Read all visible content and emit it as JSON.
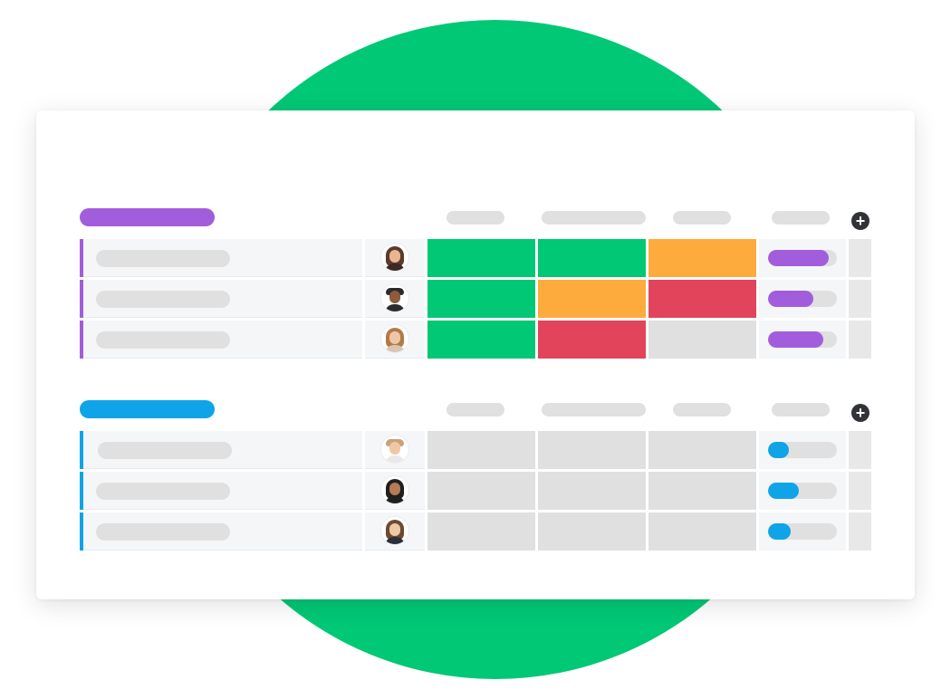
{
  "colors": {
    "background_circle": "#00c875",
    "group1_accent": "#a25ddc",
    "group2_accent": "#0fa4e8",
    "status_done": "#00c875",
    "status_working": "#fdab3d",
    "status_stuck": "#e2445c",
    "status_empty": "#e0e0e0"
  },
  "icons": {
    "add_column": "plus-circle-icon"
  },
  "groups": [
    {
      "accent": "#a25ddc",
      "rows": [
        {
          "avatar": "person-avatar",
          "statuses": [
            "#00c875",
            "#00c875",
            "#fdab3d"
          ],
          "progress": 0.88
        },
        {
          "avatar": "person-avatar",
          "statuses": [
            "#00c875",
            "#fdab3d",
            "#e2445c"
          ],
          "progress": 0.66
        },
        {
          "avatar": "person-avatar",
          "statuses": [
            "#00c875",
            "#e2445c",
            "#e0e0e0"
          ],
          "progress": 0.8
        }
      ]
    },
    {
      "accent": "#0fa4e8",
      "rows": [
        {
          "avatar": "person-avatar",
          "statuses": [
            "#e0e0e0",
            "#e0e0e0",
            "#e0e0e0"
          ],
          "progress": 0.3
        },
        {
          "avatar": "person-avatar",
          "statuses": [
            "#e0e0e0",
            "#e0e0e0",
            "#e0e0e0"
          ],
          "progress": 0.45
        },
        {
          "avatar": "person-avatar",
          "statuses": [
            "#e0e0e0",
            "#e0e0e0",
            "#e0e0e0"
          ],
          "progress": 0.33
        }
      ]
    }
  ],
  "add_symbol": "+"
}
